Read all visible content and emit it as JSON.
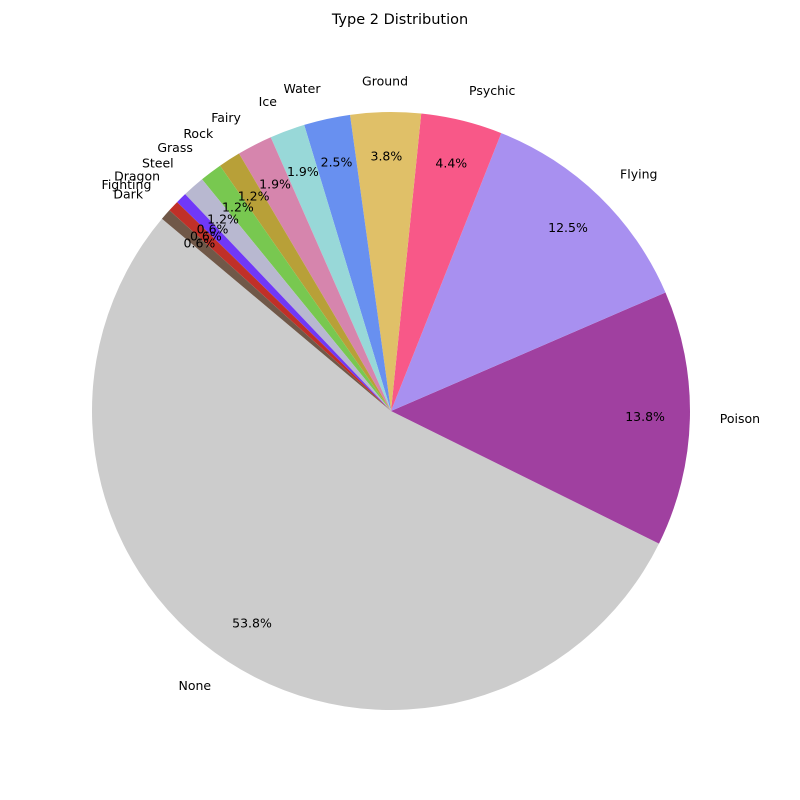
{
  "chart_data": {
    "type": "pie",
    "title": "Type 2 Distribution",
    "categories": [
      "None",
      "Poison",
      "Flying",
      "Psychic",
      "Ground",
      "Water",
      "Ice",
      "Fairy",
      "Rock",
      "Grass",
      "Steel",
      "Dragon",
      "Fighting",
      "Dark"
    ],
    "values": [
      53.8,
      13.8,
      12.5,
      4.4,
      3.8,
      2.5,
      1.9,
      1.9,
      1.2,
      1.2,
      1.2,
      0.6,
      0.6,
      0.6
    ],
    "value_labels": [
      "53.8%",
      "13.8%",
      "12.5%",
      "4.4%",
      "3.8%",
      "2.5%",
      "1.9%",
      "1.9%",
      "1.2%",
      "1.2%",
      "1.2%",
      "0.6%",
      "0.6%",
      "0.6%"
    ],
    "colors": [
      "#cccccc",
      "#a040a0",
      "#a890f0",
      "#f85888",
      "#e0c068",
      "#6890f0",
      "#98d8d8",
      "#d685ad",
      "#b8a038",
      "#78c850",
      "#b8b8d0",
      "#7038f8",
      "#c03028",
      "#705848"
    ],
    "start_angle_deg": 140,
    "direction": "counterclockwise",
    "legend": "none"
  }
}
